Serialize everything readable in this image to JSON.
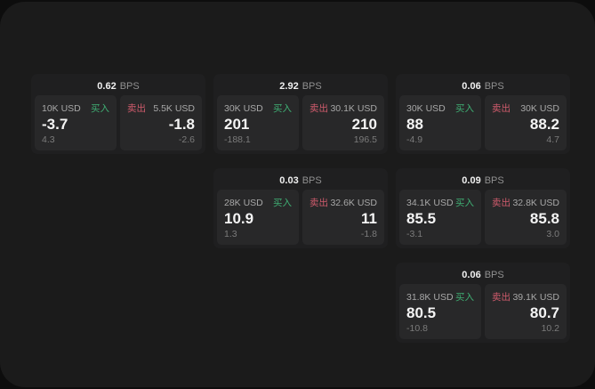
{
  "labels": {
    "bps": "BPS",
    "buy": "买入",
    "sell": "卖出"
  },
  "colors": {
    "page_background": "#0d0d0d",
    "window_background": "#1b1b1b",
    "card_background": "#1f1f20",
    "panel_background": "#282829",
    "buy_green": "#3fae73",
    "sell_red": "#cf5b6c",
    "value_white": "#f4f4f4",
    "muted_gray": "#7b7b7b"
  },
  "cards": [
    {
      "column": 1,
      "bps": "0.62",
      "buy": {
        "amount": "10K USD",
        "value": "-3.7",
        "delta": "4.3"
      },
      "sell": {
        "amount": "5.5K USD",
        "value": "-1.8",
        "delta": "-2.6"
      }
    },
    {
      "column": 2,
      "bps": "2.92",
      "buy": {
        "amount": "30K USD",
        "value": "201",
        "delta": "-188.1"
      },
      "sell": {
        "amount": "30.1K USD",
        "value": "210",
        "delta": "196.5"
      }
    },
    {
      "column": 3,
      "bps": "0.06",
      "buy": {
        "amount": "30K USD",
        "value": "88",
        "delta": "-4.9"
      },
      "sell": {
        "amount": "30K USD",
        "value": "88.2",
        "delta": "4.7"
      }
    },
    {
      "column": 2,
      "bps": "0.03",
      "buy": {
        "amount": "28K USD",
        "value": "10.9",
        "delta": "1.3"
      },
      "sell": {
        "amount": "32.6K USD",
        "value": "11",
        "delta": "-1.8"
      }
    },
    {
      "column": 3,
      "bps": "0.09",
      "buy": {
        "amount": "34.1K USD",
        "value": "85.5",
        "delta": "-3.1"
      },
      "sell": {
        "amount": "32.8K USD",
        "value": "85.8",
        "delta": "3.0"
      }
    },
    {
      "column": 3,
      "bps": "0.06",
      "buy": {
        "amount": "31.8K USD",
        "value": "80.5",
        "delta": "-10.8"
      },
      "sell": {
        "amount": "39.1K USD",
        "value": "80.7",
        "delta": "10.2"
      }
    }
  ]
}
